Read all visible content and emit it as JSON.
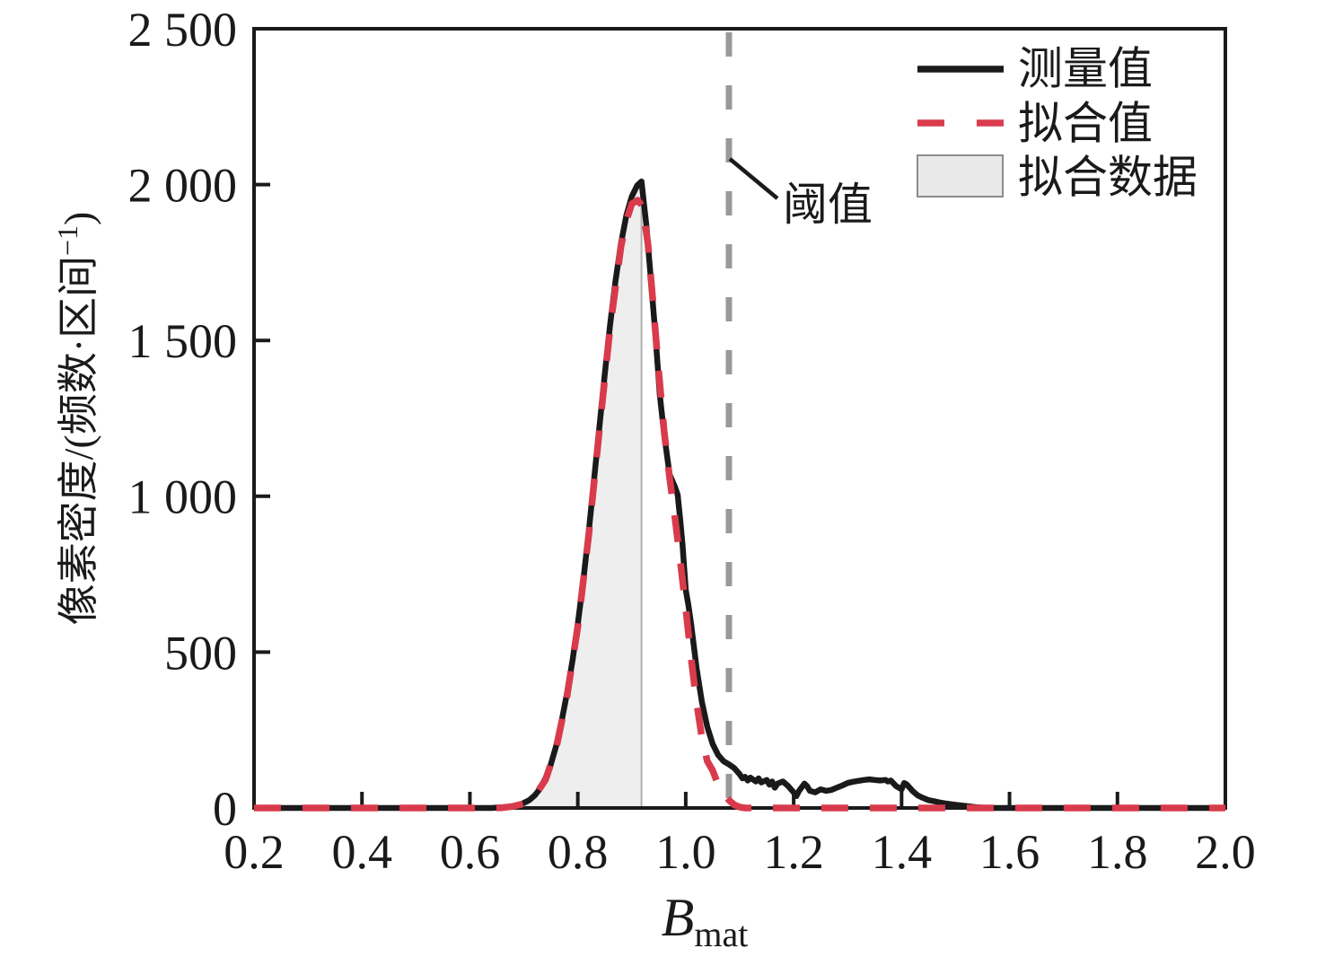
{
  "figure": {
    "background": "#ffffff"
  },
  "chart_data": {
    "type": "line",
    "title": "",
    "xlabel_main": "B",
    "xlabel_sub": "mat",
    "ylabel_prefix": "像素密度/(频数·区间",
    "ylabel_sup": "−1",
    "ylabel_suffix": ")",
    "xlim": [
      0.2,
      2.0
    ],
    "ylim": [
      0,
      2500
    ],
    "grid": false,
    "xtick_values": [
      0.2,
      0.4,
      0.6,
      0.8,
      1.0,
      1.2,
      1.4,
      1.6,
      1.8,
      2.0
    ],
    "xtick_labels": [
      "0.2",
      "0.4",
      "0.6",
      "0.8",
      "1.0",
      "1.2",
      "1.4",
      "1.6",
      "1.8",
      "2.0"
    ],
    "ytick_values": [
      0,
      500,
      1000,
      1500,
      2000,
      2500
    ],
    "ytick_labels": [
      "0",
      "500",
      "1 000",
      "1 500",
      "2 000",
      "2 500"
    ],
    "threshold_x": 1.08,
    "annotation": {
      "label": "阈值"
    },
    "legend": [
      {
        "label": "测量值",
        "type": "solid-line",
        "color": "#1a1a1a"
      },
      {
        "label": "拟合值",
        "type": "dashed-line",
        "color": "#d93b4c"
      },
      {
        "label": "拟合数据",
        "type": "fill",
        "color": "#e9e9e9",
        "edge": "#8c8c8c"
      }
    ],
    "colors": {
      "measured": "#1a1a1a",
      "fitted": "#d93b4c",
      "fill": "#eeeeee",
      "fill_edge": "#b0b0b0",
      "threshold": "#999999"
    },
    "fill_region": {
      "x_start": 0.2,
      "x_end": 0.918
    },
    "series": [
      {
        "name": "测量值",
        "style": "solid",
        "color": "#1a1a1a",
        "points": [
          [
            0.2,
            0
          ],
          [
            0.3,
            0
          ],
          [
            0.4,
            0
          ],
          [
            0.5,
            0
          ],
          [
            0.6,
            0
          ],
          [
            0.64,
            0
          ],
          [
            0.66,
            2
          ],
          [
            0.68,
            6
          ],
          [
            0.695,
            12
          ],
          [
            0.71,
            25
          ],
          [
            0.72,
            40
          ],
          [
            0.73,
            62
          ],
          [
            0.74,
            95
          ],
          [
            0.75,
            140
          ],
          [
            0.76,
            200
          ],
          [
            0.77,
            278
          ],
          [
            0.78,
            368
          ],
          [
            0.79,
            472
          ],
          [
            0.8,
            592
          ],
          [
            0.81,
            728
          ],
          [
            0.82,
            882
          ],
          [
            0.83,
            1052
          ],
          [
            0.84,
            1222
          ],
          [
            0.85,
            1392
          ],
          [
            0.86,
            1552
          ],
          [
            0.87,
            1692
          ],
          [
            0.88,
            1812
          ],
          [
            0.89,
            1902
          ],
          [
            0.9,
            1962
          ],
          [
            0.91,
            1997
          ],
          [
            0.918,
            2010
          ],
          [
            0.927,
            1870
          ],
          [
            0.935,
            1705
          ],
          [
            0.944,
            1515
          ],
          [
            0.952,
            1325
          ],
          [
            0.96,
            1200
          ],
          [
            0.97,
            1070
          ],
          [
            0.98,
            1030
          ],
          [
            0.985,
            1005
          ],
          [
            0.99,
            920
          ],
          [
            0.994,
            845
          ],
          [
            1.0,
            700
          ],
          [
            1.005,
            650
          ],
          [
            1.01,
            590
          ],
          [
            1.02,
            450
          ],
          [
            1.03,
            340
          ],
          [
            1.04,
            260
          ],
          [
            1.05,
            205
          ],
          [
            1.06,
            170
          ],
          [
            1.07,
            150
          ],
          [
            1.08,
            140
          ],
          [
            1.09,
            128
          ],
          [
            1.1,
            108
          ],
          [
            1.105,
            95
          ],
          [
            1.11,
            100
          ],
          [
            1.115,
            88
          ],
          [
            1.12,
            97
          ],
          [
            1.13,
            85
          ],
          [
            1.135,
            95
          ],
          [
            1.14,
            82
          ],
          [
            1.15,
            90
          ],
          [
            1.155,
            75
          ],
          [
            1.16,
            85
          ],
          [
            1.165,
            65
          ],
          [
            1.17,
            78
          ],
          [
            1.18,
            85
          ],
          [
            1.19,
            70
          ],
          [
            1.2,
            50
          ],
          [
            1.205,
            38
          ],
          [
            1.21,
            55
          ],
          [
            1.22,
            78
          ],
          [
            1.225,
            70
          ],
          [
            1.23,
            55
          ],
          [
            1.24,
            50
          ],
          [
            1.25,
            60
          ],
          [
            1.26,
            55
          ],
          [
            1.27,
            58
          ],
          [
            1.28,
            65
          ],
          [
            1.29,
            72
          ],
          [
            1.3,
            80
          ],
          [
            1.31,
            84
          ],
          [
            1.32,
            87
          ],
          [
            1.33,
            90
          ],
          [
            1.34,
            92
          ],
          [
            1.35,
            90
          ],
          [
            1.36,
            88
          ],
          [
            1.37,
            90
          ],
          [
            1.375,
            85
          ],
          [
            1.38,
            88
          ],
          [
            1.39,
            70
          ],
          [
            1.4,
            60
          ],
          [
            1.405,
            80
          ],
          [
            1.41,
            75
          ],
          [
            1.42,
            55
          ],
          [
            1.43,
            40
          ],
          [
            1.44,
            32
          ],
          [
            1.45,
            25
          ],
          [
            1.46,
            22
          ],
          [
            1.47,
            18
          ],
          [
            1.48,
            15
          ],
          [
            1.5,
            10
          ],
          [
            1.52,
            6
          ],
          [
            1.54,
            2
          ],
          [
            1.56,
            0
          ],
          [
            1.6,
            0
          ],
          [
            1.7,
            0
          ],
          [
            1.8,
            0
          ],
          [
            1.9,
            0
          ],
          [
            2.0,
            0
          ]
        ]
      },
      {
        "name": "拟合值",
        "style": "dashed",
        "color": "#d93b4c",
        "points": [
          [
            0.2,
            0
          ],
          [
            0.3,
            0
          ],
          [
            0.4,
            0
          ],
          [
            0.5,
            0
          ],
          [
            0.6,
            0
          ],
          [
            0.64,
            0
          ],
          [
            0.66,
            1
          ],
          [
            0.68,
            5
          ],
          [
            0.7,
            14
          ],
          [
            0.72,
            38
          ],
          [
            0.74,
            90
          ],
          [
            0.76,
            192
          ],
          [
            0.78,
            358
          ],
          [
            0.8,
            582
          ],
          [
            0.82,
            872
          ],
          [
            0.84,
            1212
          ],
          [
            0.86,
            1542
          ],
          [
            0.88,
            1802
          ],
          [
            0.89,
            1885
          ],
          [
            0.9,
            1938
          ],
          [
            0.911,
            1950
          ],
          [
            0.92,
            1930
          ],
          [
            0.93,
            1810
          ],
          [
            0.94,
            1610
          ],
          [
            0.95,
            1400
          ],
          [
            0.96,
            1210
          ],
          [
            0.97,
            1060
          ],
          [
            0.98,
            930
          ],
          [
            0.99,
            790
          ],
          [
            1.0,
            640
          ],
          [
            1.01,
            480
          ],
          [
            1.02,
            340
          ],
          [
            1.03,
            225
          ],
          [
            1.04,
            150
          ],
          [
            1.05,
            120
          ],
          [
            1.06,
            75
          ],
          [
            1.07,
            45
          ],
          [
            1.08,
            25
          ],
          [
            1.09,
            10
          ],
          [
            1.1,
            3
          ],
          [
            1.11,
            0
          ],
          [
            1.2,
            0
          ],
          [
            1.3,
            0
          ],
          [
            1.4,
            0
          ],
          [
            1.5,
            0
          ],
          [
            1.6,
            0
          ],
          [
            1.7,
            0
          ],
          [
            1.8,
            0
          ],
          [
            1.9,
            0
          ],
          [
            2.0,
            0
          ]
        ]
      }
    ]
  }
}
